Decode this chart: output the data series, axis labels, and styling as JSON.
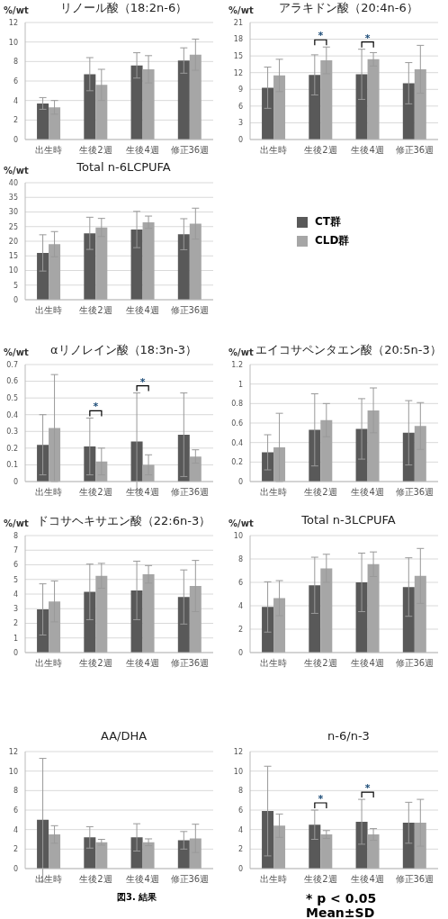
{
  "chart_data": [
    {
      "type": "bar",
      "title": "リノール酸（18:2n-6）",
      "ylabel": "%/wt",
      "categories": [
        "出生時",
        "生後2週",
        "生後4週",
        "修正36週"
      ],
      "ylim": [
        0,
        12
      ],
      "yticks": [
        0,
        2,
        4,
        6,
        8,
        10,
        12
      ],
      "grid": "y",
      "series": [
        {
          "color": "#595959",
          "values": [
            3.7,
            6.7,
            7.6,
            8.1
          ],
          "errors": [
            0.6,
            1.7,
            1.3,
            1.3
          ]
        },
        {
          "color": "#a6a6a6",
          "values": [
            3.3,
            5.6,
            7.2,
            8.7
          ],
          "errors": [
            0.7,
            1.6,
            1.4,
            1.6
          ]
        }
      ]
    },
    {
      "type": "bar",
      "title": "アラキドン酸（20:4n-6）",
      "ylabel": "%/wt",
      "categories": [
        "出生時",
        "生後2週",
        "生後4週",
        "修正36週"
      ],
      "ylim": [
        0,
        21
      ],
      "yticks": [
        0,
        3,
        6,
        9,
        12,
        15,
        18,
        21
      ],
      "grid": "y",
      "series": [
        {
          "color": "#595959",
          "values": [
            9.3,
            11.6,
            11.7,
            10.1
          ],
          "errors": [
            3.7,
            3.6,
            4.5,
            3.7
          ]
        },
        {
          "color": "#a6a6a6",
          "values": [
            11.5,
            14.2,
            14.4,
            12.6
          ],
          "errors": [
            2.9,
            2.4,
            1.2,
            4.3
          ]
        }
      ],
      "annotations": [
        {
          "text": "*",
          "x": "生後2週",
          "y": 14.2
        },
        {
          "text": "*",
          "x": "生後4週",
          "y": 14.4
        }
      ]
    },
    {
      "type": "bar",
      "title": "Total n-6LCPUFA",
      "ylabel": "%/wt",
      "categories": [
        "出生時",
        "生後2週",
        "生後4週",
        "修正36週"
      ],
      "ylim": [
        0,
        40
      ],
      "yticks": [
        0,
        5,
        10,
        15,
        20,
        25,
        30,
        35,
        40
      ],
      "grid": "y",
      "legend": "right",
      "series": [
        {
          "name": "CT群",
          "color": "#595959",
          "values": [
            16.0,
            22.7,
            24.0,
            22.4
          ],
          "errors": [
            6.2,
            5.5,
            6.2,
            5.3
          ]
        },
        {
          "name": "CLD群",
          "color": "#a6a6a6",
          "values": [
            19.0,
            24.7,
            26.5,
            26.0
          ],
          "errors": [
            4.3,
            3.1,
            2.1,
            5.3
          ]
        }
      ]
    },
    {
      "type": "bar",
      "title": "αリノレイン酸（18:3n-3）",
      "ylabel": "%/wt",
      "categories": [
        "出生時",
        "生後2週",
        "生後4週",
        "修正36週"
      ],
      "ylim": [
        0,
        0.7
      ],
      "yticks": [
        0,
        0.1,
        0.2,
        0.3,
        0.4,
        0.5,
        0.6,
        0.7
      ],
      "grid": "y",
      "series": [
        {
          "color": "#595959",
          "values": [
            0.22,
            0.21,
            0.24,
            0.28
          ],
          "errors": [
            0.18,
            0.17,
            0.29,
            0.25
          ]
        },
        {
          "color": "#a6a6a6",
          "values": [
            0.32,
            0.12,
            0.1,
            0.15
          ],
          "errors": [
            0.32,
            0.08,
            0.06,
            0.04
          ]
        }
      ],
      "annotations": [
        {
          "text": "*",
          "x": "生後2週",
          "y": 0.38
        },
        {
          "text": "*",
          "x": "生後4週",
          "y": 0.53
        }
      ]
    },
    {
      "type": "bar",
      "title": "エイコサペンタエン酸（20:5n-3）",
      "ylabel": "%/wt",
      "categories": [
        "出生時",
        "生後2週",
        "生後4週",
        "修正36週"
      ],
      "ylim": [
        0,
        1.2
      ],
      "yticks": [
        0,
        0.2,
        0.4,
        0.6,
        0.8,
        1,
        1.2
      ],
      "grid": "y",
      "series": [
        {
          "color": "#595959",
          "values": [
            0.3,
            0.53,
            0.54,
            0.5
          ],
          "errors": [
            0.18,
            0.37,
            0.31,
            0.33
          ]
        },
        {
          "color": "#a6a6a6",
          "values": [
            0.35,
            0.63,
            0.73,
            0.57
          ],
          "errors": [
            0.35,
            0.17,
            0.23,
            0.24
          ]
        }
      ]
    },
    {
      "type": "bar",
      "title": "ドコサヘキサエン酸（22:6n-3）",
      "ylabel": "%/wt",
      "categories": [
        "出生時",
        "生後2週",
        "生後4週",
        "修正36週"
      ],
      "ylim": [
        0,
        8
      ],
      "yticks": [
        0,
        1,
        2,
        3,
        4,
        5,
        6,
        7,
        8
      ],
      "grid": "y",
      "series": [
        {
          "color": "#595959",
          "values": [
            2.95,
            4.15,
            4.25,
            3.8
          ],
          "errors": [
            1.75,
            1.9,
            2.0,
            1.85
          ]
        },
        {
          "color": "#a6a6a6",
          "values": [
            3.5,
            5.25,
            5.35,
            4.55
          ],
          "errors": [
            1.4,
            0.85,
            0.6,
            1.75
          ]
        }
      ]
    },
    {
      "type": "bar",
      "title": "Total n-3LCPUFA",
      "ylabel": "%/wt",
      "categories": [
        "出生時",
        "生後2週",
        "生後4週",
        "修正36週"
      ],
      "ylim": [
        0,
        10
      ],
      "yticks": [
        0,
        2,
        4,
        6,
        8,
        10
      ],
      "grid": "y",
      "series": [
        {
          "color": "#595959",
          "values": [
            3.9,
            5.75,
            6.0,
            5.6
          ],
          "errors": [
            2.15,
            2.4,
            2.5,
            2.5
          ]
        },
        {
          "color": "#a6a6a6",
          "values": [
            4.65,
            7.2,
            7.55,
            6.55
          ],
          "errors": [
            1.5,
            1.2,
            1.05,
            2.35
          ]
        }
      ]
    },
    {
      "type": "bar",
      "title": "AA/DHA",
      "categories": [
        "出生時",
        "生後2週",
        "生後4週",
        "修正36週"
      ],
      "ylim": [
        0,
        12
      ],
      "yticks": [
        0,
        2,
        4,
        6,
        8,
        10,
        12
      ],
      "grid": "y",
      "series": [
        {
          "color": "#595959",
          "values": [
            5.0,
            3.2,
            3.2,
            2.9
          ],
          "errors": [
            6.3,
            1.1,
            1.4,
            0.9
          ]
        },
        {
          "color": "#a6a6a6",
          "values": [
            3.5,
            2.7,
            2.7,
            3.1
          ],
          "errors": [
            0.9,
            0.3,
            0.35,
            1.45
          ]
        }
      ],
      "annotations": [
        "図3. 結果"
      ]
    },
    {
      "type": "bar",
      "title": "n-6/n-3",
      "categories": [
        "出生時",
        "生後2週",
        "生後4週",
        "修正36週"
      ],
      "ylim": [
        0,
        12
      ],
      "yticks": [
        0,
        2,
        4,
        6,
        8,
        10,
        12
      ],
      "grid": "y",
      "series": [
        {
          "color": "#595959",
          "values": [
            5.9,
            4.5,
            4.8,
            4.7
          ],
          "errors": [
            4.6,
            1.5,
            2.3,
            2.1
          ]
        },
        {
          "color": "#a6a6a6",
          "values": [
            4.4,
            3.5,
            3.5,
            4.7
          ],
          "errors": [
            1.2,
            0.4,
            0.6,
            2.4
          ]
        }
      ],
      "annotations": [
        {
          "text": "*",
          "x": "生後2週",
          "y": 4.5
        },
        {
          "text": "*",
          "x": "生後4週",
          "y": 4.8
        },
        "* p < 0.05",
        "Mean±SD"
      ]
    }
  ]
}
